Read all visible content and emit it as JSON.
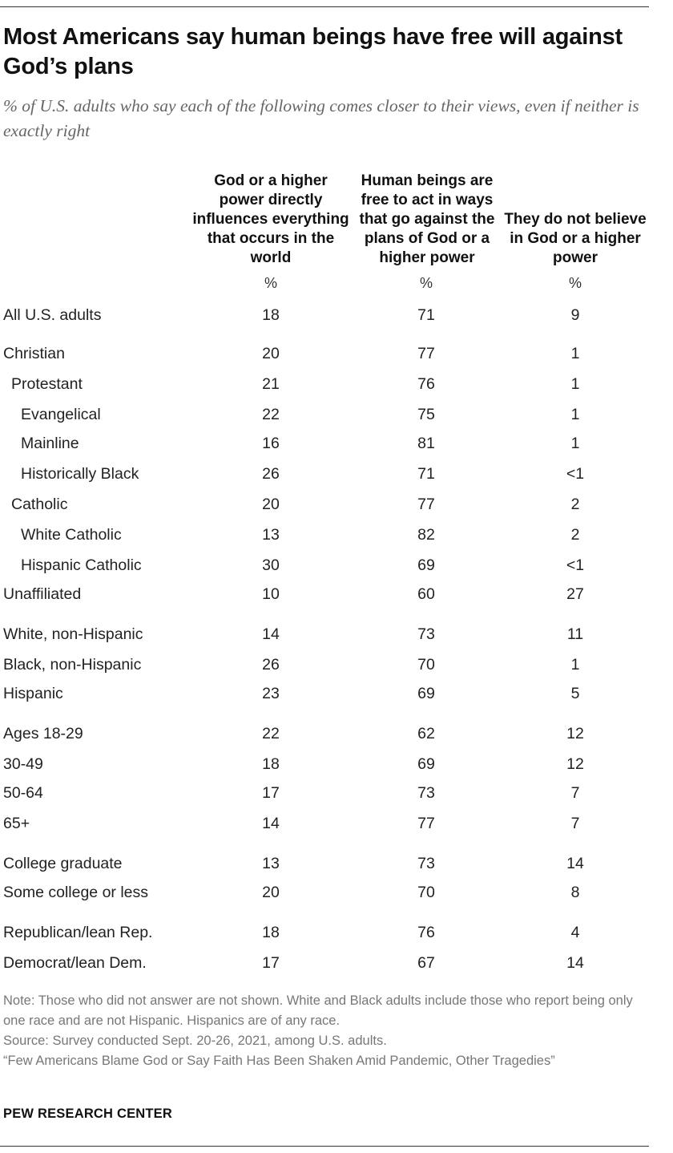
{
  "title": "Most Americans say human beings have free will against God’s plans",
  "subtitle": "% of U.S. adults who say each of the following comes closer to their views, even if neither is exactly right",
  "columns": [
    "God or a higher power directly influences everything that occurs in the world",
    "Human beings are free to act in ways that go against the plans of God or a higher power",
    "They do not believe in God or a higher power"
  ],
  "unit_symbol": "%",
  "chart_data": {
    "type": "table",
    "title": "Most Americans say human beings have free will against God’s plans",
    "columns": [
      "God or a higher power directly influences everything that occurs in the world",
      "Human beings are free to act in ways that go against the plans of God or a higher power",
      "They do not believe in God or a higher power"
    ],
    "rows": [
      {
        "label": "All U.S. adults",
        "indent": 0,
        "values": [
          "18",
          "71",
          "9"
        ]
      },
      {
        "label": "Christian",
        "indent": 0,
        "values": [
          "20",
          "77",
          "1"
        ]
      },
      {
        "label": "Protestant",
        "indent": 1,
        "values": [
          "21",
          "76",
          "1"
        ]
      },
      {
        "label": "Evangelical",
        "indent": 2,
        "values": [
          "22",
          "75",
          "1"
        ]
      },
      {
        "label": "Mainline",
        "indent": 2,
        "values": [
          "16",
          "81",
          "1"
        ]
      },
      {
        "label": "Historically Black",
        "indent": 2,
        "values": [
          "26",
          "71",
          "<1"
        ]
      },
      {
        "label": "Catholic",
        "indent": 1,
        "values": [
          "20",
          "77",
          "2"
        ]
      },
      {
        "label": "White Catholic",
        "indent": 2,
        "values": [
          "13",
          "82",
          "2"
        ]
      },
      {
        "label": "Hispanic Catholic",
        "indent": 2,
        "values": [
          "30",
          "69",
          "<1"
        ]
      },
      {
        "label": "Unaffiliated",
        "indent": 0,
        "values": [
          "10",
          "60",
          "27"
        ]
      },
      {
        "label": "White, non-Hispanic",
        "indent": 0,
        "values": [
          "14",
          "73",
          "11"
        ]
      },
      {
        "label": "Black, non-Hispanic",
        "indent": 0,
        "values": [
          "26",
          "70",
          "1"
        ]
      },
      {
        "label": "Hispanic",
        "indent": 0,
        "values": [
          "23",
          "69",
          "5"
        ]
      },
      {
        "label": "Ages 18-29",
        "indent": 0,
        "values": [
          "22",
          "62",
          "12"
        ]
      },
      {
        "label": "30-49",
        "indent": 0,
        "values": [
          "18",
          "69",
          "12"
        ]
      },
      {
        "label": "50-64",
        "indent": 0,
        "values": [
          "17",
          "73",
          "7"
        ]
      },
      {
        "label": "65+",
        "indent": 0,
        "values": [
          "14",
          "77",
          "7"
        ]
      },
      {
        "label": "College graduate",
        "indent": 0,
        "values": [
          "13",
          "73",
          "14"
        ]
      },
      {
        "label": "Some college or less",
        "indent": 0,
        "values": [
          "20",
          "70",
          "8"
        ]
      },
      {
        "label": "Republican/lean Rep.",
        "indent": 0,
        "values": [
          "18",
          "76",
          "4"
        ]
      },
      {
        "label": "Democrat/lean Dem.",
        "indent": 0,
        "values": [
          "17",
          "67",
          "14"
        ]
      }
    ]
  },
  "notes": {
    "note": "Note: Those who did not answer are not shown. White and Black adults include those who report being only one race and are not Hispanic. Hispanics are of any race.",
    "source": "Source: Survey conducted Sept. 20-26, 2021, among U.S. adults.",
    "report": "“Few Americans Blame God or Say Faith Has Been Shaken Amid Pandemic, Other Tragedies”"
  },
  "brand": "PEW RESEARCH CENTER"
}
